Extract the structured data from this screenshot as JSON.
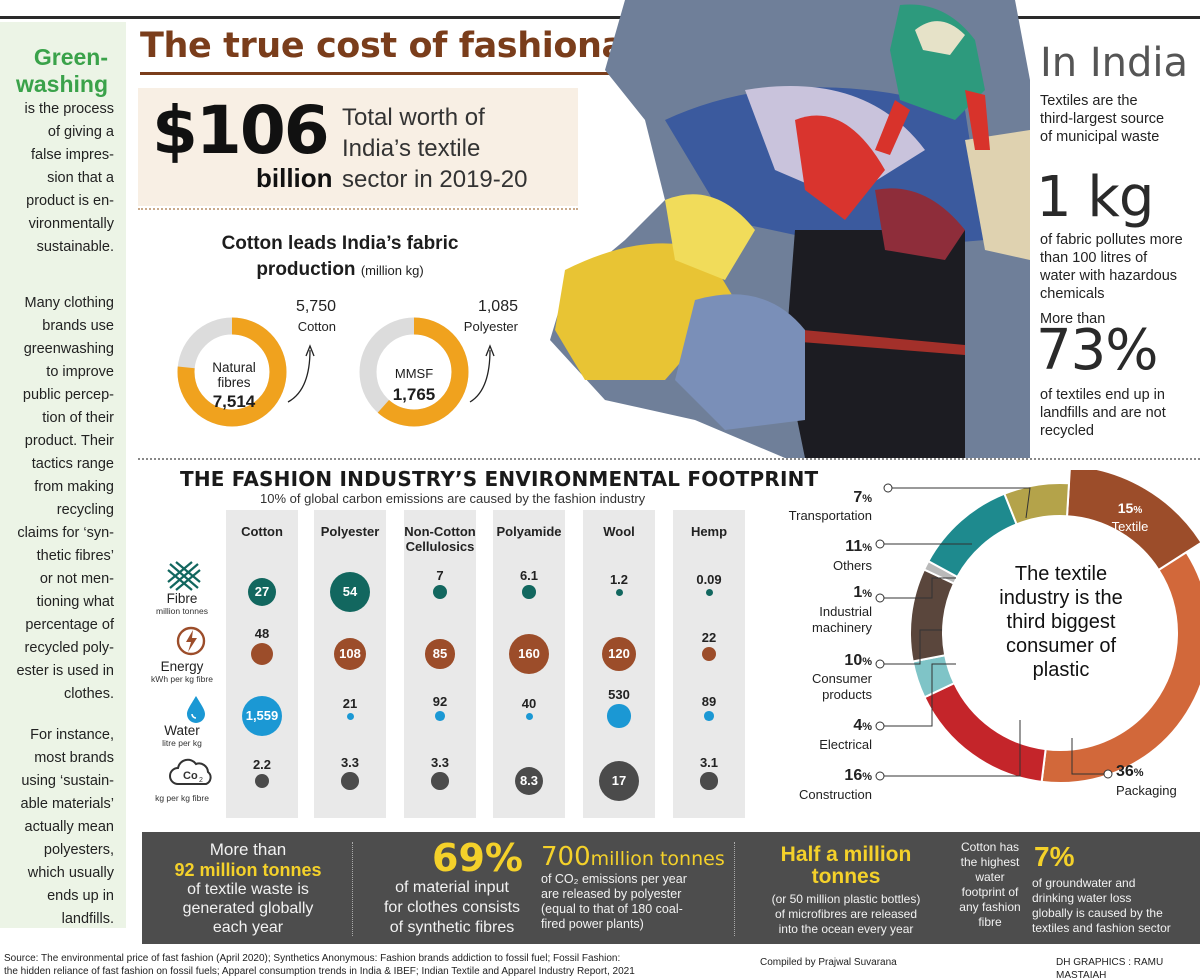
{
  "headline": "The true cost of fashionable clothing",
  "sidebar": {
    "title": "Green-\nwashing",
    "p1": "is the process\nof giving a\nfalse impres-\nsion that a\nproduct is en-\nvironmentally\nsustainable.",
    "p2": "Many clothing\nbrands use\ngreenwashing\nto improve\npublic percep-\ntion of their\nproduct. Their\ntactics range\nfrom making\nrecycling\nclaims for ‘syn-\nthetic fibres’\nor not men-\ntioning what\npercentage of\nrecycled poly-\nester is used in\nclothes.",
    "p3": "For instance,\nmost brands\nusing ‘sustain-\nable materials’\nactually mean\npolyesters,\nwhich usually\nends up in\nlandfills."
  },
  "big_stat": {
    "amount": "$106",
    "unit": "billion",
    "desc": "Total worth of\nIndia’s textile\nsector in 2019-20"
  },
  "cotton": {
    "title": "Cotton leads India’s fabric",
    "title2": "production",
    "unit": "(million kg)",
    "natural": {
      "label": "Natural\nfibres",
      "value": "7,514",
      "callout_value": "5,750",
      "callout_label": "Cotton",
      "fraction": 0.765
    },
    "mmsf": {
      "label": "MMSF",
      "value": "1,765",
      "callout_value": "1,085",
      "callout_label": "Polyester",
      "fraction": 0.615
    },
    "colors": {
      "orange": "#f0a21e",
      "grey": "#dcdcdc"
    }
  },
  "india": {
    "title": "In India",
    "t1": "Textiles are the\nthird-largest source\nof municipal waste",
    "big1": "1 kg",
    "t2": "of fabric pollutes more\nthan 100 litres of\nwater with hazardous\nchemicals",
    "t3": "More than",
    "big2": "73%",
    "t4": "of textiles end up in\nlandfills and are not\nrecycled"
  },
  "footprint": {
    "title": "THE FASHION INDUSTRY’S ENVIRONMENTAL FOOTPRINT",
    "subtitle": "10% of global carbon emissions are caused by the fashion industry",
    "columns": [
      "Cotton",
      "Polyester",
      "Non-Cotton\nCellulosics",
      "Polyamide",
      "Wool",
      "Hemp"
    ],
    "rows": [
      {
        "name": "Fibre",
        "unit": "million tonnes",
        "icon": "fibre-icon",
        "color": "#12675f",
        "values": [
          "27",
          "54",
          "7",
          "6.1",
          "1.2",
          "0.09"
        ],
        "sizes": [
          27,
          54,
          7,
          6.1,
          1.2,
          0.09
        ]
      },
      {
        "name": "Energy",
        "unit": "kWh per kg fibre",
        "icon": "energy-icon",
        "color": "#9c4d2a",
        "values": [
          "48",
          "108",
          "85",
          "160",
          "120",
          "22"
        ],
        "sizes": [
          48,
          108,
          85,
          160,
          120,
          22
        ]
      },
      {
        "name": "Water",
        "unit": "litre per kg",
        "icon": "water-icon",
        "color": "#1b98d4",
        "values": [
          "1,559",
          "21",
          "92",
          "40",
          "530",
          "89"
        ],
        "sizes": [
          1559,
          21,
          92,
          40,
          530,
          89
        ]
      },
      {
        "name": "",
        "unit": "kg per kg fibre",
        "icon": "co2-cloud-icon",
        "color": "#4b4b4b",
        "values": [
          "2.2",
          "3.3",
          "3.3",
          "8.3",
          "17",
          "3.1"
        ],
        "sizes": [
          2.2,
          3.3,
          3.3,
          8.3,
          17,
          3.1
        ]
      }
    ]
  },
  "plastic": {
    "center": "The textile\nindustry is the\nthird biggest\nconsumer of\nplastic",
    "slices": [
      {
        "pct": "15",
        "name": "Textile",
        "value": 15,
        "color": "#9c4d2a"
      },
      {
        "pct": "36",
        "name": "Packaging",
        "value": 36,
        "color": "#d2683a"
      },
      {
        "pct": "16",
        "name": "Construction",
        "value": 16,
        "color": "#c4252a"
      },
      {
        "pct": "4",
        "name": "Electrical",
        "value": 4,
        "color": "#7fc4c7"
      },
      {
        "pct": "10",
        "name": "Consumer\nproducts",
        "value": 10,
        "color": "#5a463c"
      },
      {
        "pct": "1",
        "name": "Industrial\nmachinery",
        "value": 1,
        "color": "#b9b9b9"
      },
      {
        "pct": "11",
        "name": "Others",
        "value": 11,
        "color": "#1e8a8e"
      },
      {
        "pct": "7",
        "name": "Transportation",
        "value": 7,
        "color": "#b4a34a"
      }
    ],
    "pct_sign": "%"
  },
  "bottom": {
    "b1a": "More than",
    "b1b": "92 million tonnes",
    "b1c": "of textile waste is\ngenerated globally\neach year",
    "b2a": "69%",
    "b2b": "of material input\nfor clothes consists\nof synthetic fibres",
    "b3a": "700",
    "b3b": "million tonnes",
    "b3c": "of CO₂ emissions per year\nare released by polyester\n(equal to that of 180 coal-\nfired power plants)",
    "b4a": "Half a million\ntonnes",
    "b4b": "(or 50 million plastic bottles)\nof microfibres are released\ninto the ocean every year",
    "b5a": "Cotton has\nthe highest\nwater\nfootprint of\nany fashion\nfibre",
    "b6a": "7%",
    "b6b": "of groundwater and\ndrinking water loss\nglobally is caused by the\ntextiles and fashion sector"
  },
  "footer": {
    "source": "Source: The environmental price of fast fashion (April 2020); Synthetics Anonymous: Fashion brands addiction to fossil fuel; Fossil Fashion:\nthe hidden reliance of fast fashion on fossil fuels; Apparel consumption trends in India & IBEF;  Indian Textile and Apparel Industry Report, 2021",
    "compiled": "Compiled by Prajwal Suvarana",
    "graphics": "DH GRAPHICS : RAMU MASTAIAH"
  }
}
